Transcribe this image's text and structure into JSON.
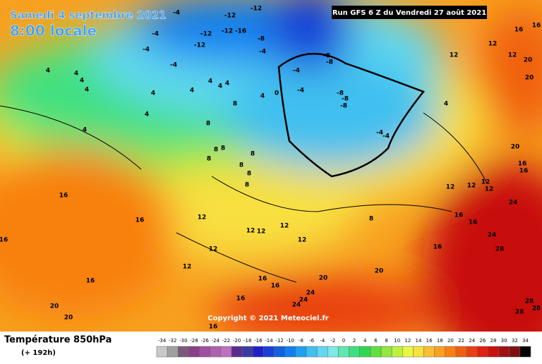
{
  "header": {
    "date": "Samedi 4 septembre 2021",
    "time": "8:00 locale",
    "run": "Run GFS 6 Z du Vendredi 27 août 2021"
  },
  "map": {
    "labels": [
      -4,
      -12,
      -12,
      -4,
      -12,
      -12,
      -16,
      -8,
      -12,
      -4,
      -4,
      -4,
      -8,
      -8,
      -4,
      4,
      4,
      4,
      4,
      4,
      4,
      4,
      4,
      4,
      4,
      0,
      -4,
      -8,
      -8,
      -8,
      4,
      4,
      8,
      8,
      4,
      -4,
      -4,
      8,
      8,
      8,
      8,
      8,
      8,
      8,
      16,
      16,
      12,
      12,
      12,
      12,
      12,
      12,
      12,
      12,
      8,
      12,
      12,
      12,
      16,
      16,
      16,
      24,
      28,
      24,
      20,
      16,
      16,
      20,
      20,
      12,
      12,
      12,
      16,
      16,
      16,
      16,
      24,
      24,
      24,
      20,
      20,
      16,
      16,
      16,
      20,
      20,
      16,
      28,
      28,
      28
    ],
    "copyright": "Copyright © 2021 Meteociel.fr"
  },
  "footer": {
    "title": "Température 850hPa",
    "lead": "(+ 192h)"
  },
  "colorbar": {
    "ticks": [
      -34,
      -32,
      -30,
      -28,
      -26,
      -24,
      -22,
      -20,
      -18,
      -16,
      -14,
      -12,
      -10,
      -8,
      -6,
      -4,
      -2,
      0,
      2,
      4,
      6,
      8,
      10,
      12,
      14,
      16,
      18,
      20,
      22,
      24,
      26,
      28,
      30,
      32,
      34
    ],
    "colors": [
      "#c8c8c8",
      "#a0a0a0",
      "#7a5a7a",
      "#8a3f8a",
      "#a050a0",
      "#b060b0",
      "#c070c0",
      "#5a2d8c",
      "#3c3ca0",
      "#2020c8",
      "#1840d8",
      "#1060e0",
      "#1080f0",
      "#20a0f0",
      "#40c0f0",
      "#60d8f0",
      "#80e8e8",
      "#60e8b0",
      "#40e080",
      "#30d850",
      "#60e040",
      "#90e840",
      "#c0f040",
      "#e8f840",
      "#f8e040",
      "#f8c030",
      "#f8a020",
      "#f88010",
      "#f06010",
      "#e84010",
      "#e02010",
      "#c81010",
      "#a01010",
      "#801010",
      "#000000"
    ]
  }
}
